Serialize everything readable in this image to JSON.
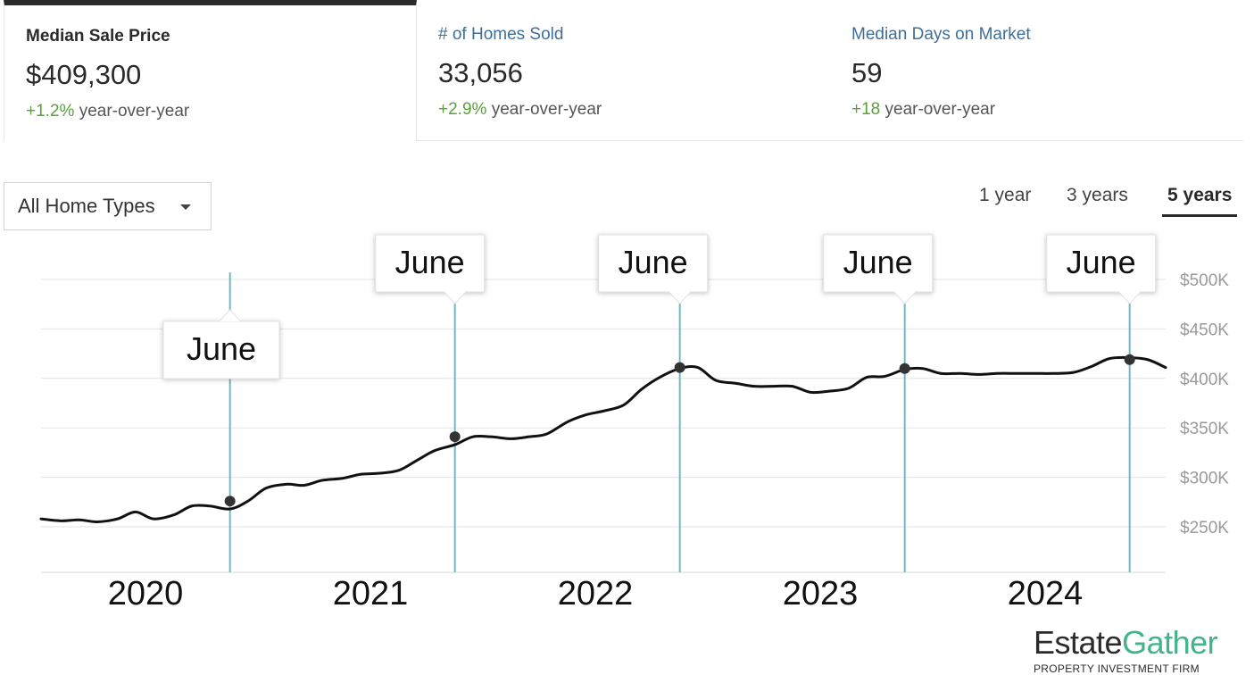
{
  "stats": [
    {
      "label": "Median Sale Price",
      "value": "$409,300",
      "delta": "+1.2%",
      "change_text": "year-over-year",
      "active": true
    },
    {
      "label": "# of Homes Sold",
      "value": "33,056",
      "delta": "+2.9%",
      "change_text": "year-over-year",
      "active": false
    },
    {
      "label": "Median Days on Market",
      "value": "59",
      "delta": "+18",
      "change_text": "year-over-year",
      "active": false
    }
  ],
  "filter": {
    "selected": "All Home Types"
  },
  "range_tabs": [
    {
      "label": "1 year",
      "selected": false
    },
    {
      "label": "3 years",
      "selected": false
    },
    {
      "label": "5 years",
      "selected": true
    }
  ],
  "colors": {
    "line": "#111111",
    "marker_line": "#6fb9c2",
    "grid": "#e3e3e3",
    "delta": "#5aa13b",
    "link": "#3e6f99",
    "brand_accent": "#42b48a"
  },
  "watermark": {
    "brand_part1": "Estate",
    "brand_part2": "Gather",
    "subtitle": "PROPERTY INVESTMENT FIRM"
  },
  "chart_data": {
    "type": "line",
    "title": "",
    "xlabel": "",
    "ylabel": "",
    "x_labels": [
      "2020",
      "2021",
      "2022",
      "2023",
      "2024"
    ],
    "y_ticks": [
      "$250K",
      "$300K",
      "$350K",
      "$400K",
      "$450K",
      "$500K"
    ],
    "ylim": [
      205000,
      520000
    ],
    "xlim": [
      2019.58,
      2024.58
    ],
    "grid": true,
    "annotation_label": "June",
    "series": [
      {
        "x": [
          2019.58,
          2019.67,
          2019.75,
          2019.83,
          2019.92,
          2020.0,
          2020.08,
          2020.17,
          2020.25,
          2020.33,
          2020.42,
          2020.5,
          2020.58,
          2020.67,
          2020.75,
          2020.83,
          2020.92,
          2021.0,
          2021.08,
          2021.17,
          2021.25,
          2021.33,
          2021.42,
          2021.5,
          2021.58,
          2021.67,
          2021.75,
          2021.83,
          2021.92,
          2022.0,
          2022.08,
          2022.17,
          2022.25,
          2022.33,
          2022.42,
          2022.5,
          2022.58,
          2022.67,
          2022.75,
          2022.83,
          2022.92,
          2023.0,
          2023.08,
          2023.17,
          2023.25,
          2023.33,
          2023.42,
          2023.5,
          2023.58,
          2023.67,
          2023.75,
          2023.83,
          2023.92,
          2024.0,
          2024.08,
          2024.17,
          2024.25,
          2024.33,
          2024.42,
          2024.5,
          2024.58
        ],
        "values": [
          258000,
          256000,
          257000,
          255000,
          258000,
          265000,
          258000,
          262000,
          271000,
          271000,
          268000,
          276000,
          289000,
          293000,
          292000,
          297000,
          299000,
          303000,
          304000,
          307000,
          317000,
          327000,
          333000,
          341000,
          341000,
          339000,
          341000,
          344000,
          356000,
          363000,
          367000,
          373000,
          389000,
          401000,
          410000,
          411000,
          398000,
          395000,
          392000,
          392000,
          392000,
          386000,
          387000,
          390000,
          401000,
          402000,
          409000,
          410000,
          405000,
          405000,
          404000,
          405000,
          405000,
          405000,
          405000,
          406000,
          412000,
          420000,
          421000,
          419000,
          411000
        ]
      }
    ],
    "annotations": [
      {
        "x": 2020.42,
        "y": 276000,
        "label": "June",
        "placement": "below-left"
      },
      {
        "x": 2021.42,
        "y": 341000,
        "label": "June",
        "placement": "above"
      },
      {
        "x": 2022.42,
        "y": 411000,
        "label": "June",
        "placement": "above"
      },
      {
        "x": 2023.42,
        "y": 410000,
        "label": "June",
        "placement": "above"
      },
      {
        "x": 2024.42,
        "y": 419000,
        "label": "June",
        "placement": "above"
      }
    ]
  }
}
